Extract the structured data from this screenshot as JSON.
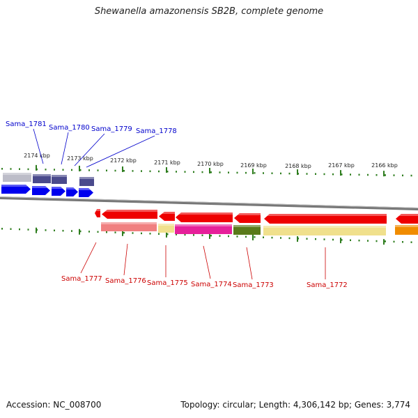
{
  "title": "Shewanella amazonensis SB2B, complete genome",
  "footer": {
    "accession": "Accession: NC_008700",
    "stats": "Topology: circular; Length: 4,306,142 bp; Genes: 3,774"
  },
  "colors": {
    "upper_strand_label": "#0000cc",
    "lower_strand_label": "#cc0000",
    "tick": "#2e7d1e",
    "backbone": "#777777",
    "forward_arrow": "#0000ee",
    "reverse_arrow": "#ee0000"
  },
  "ticks": [
    {
      "label": "2174 kbp",
      "pos": 2174
    },
    {
      "label": "2173 kbp",
      "pos": 2173
    },
    {
      "label": "2172 kbp",
      "pos": 2172
    },
    {
      "label": "2171 kbp",
      "pos": 2171
    },
    {
      "label": "2170 kbp",
      "pos": 2170
    },
    {
      "label": "2169 kbp",
      "pos": 2169
    },
    {
      "label": "2168 kbp",
      "pos": 2168
    },
    {
      "label": "2167 kbp",
      "pos": 2167
    },
    {
      "label": "2166 kbp",
      "pos": 2166
    }
  ],
  "forward_genes": [
    {
      "label": "Sama_1781",
      "color": "#bcbcc8"
    },
    {
      "label": "Sama_1780",
      "color": "#4a4a8c"
    },
    {
      "label": "Sama_1779",
      "color": "#4a4a8c"
    },
    {
      "label": "Sama_1778",
      "color": "#4a4a8c"
    }
  ],
  "reverse_genes": [
    {
      "label": "Sama_1777",
      "color": "#f08080"
    },
    {
      "label": "Sama_1776",
      "color": "#f08080"
    },
    {
      "label": "Sama_1775",
      "color": "#f0e08c"
    },
    {
      "label": "Sama_1774",
      "color": "#e6209a"
    },
    {
      "label": "Sama_1773",
      "color": "#5a7a1a"
    },
    {
      "label": "Sama_1772",
      "color": "#f0e08c"
    }
  ],
  "unlabeled_reverse_color": "#f08c00"
}
